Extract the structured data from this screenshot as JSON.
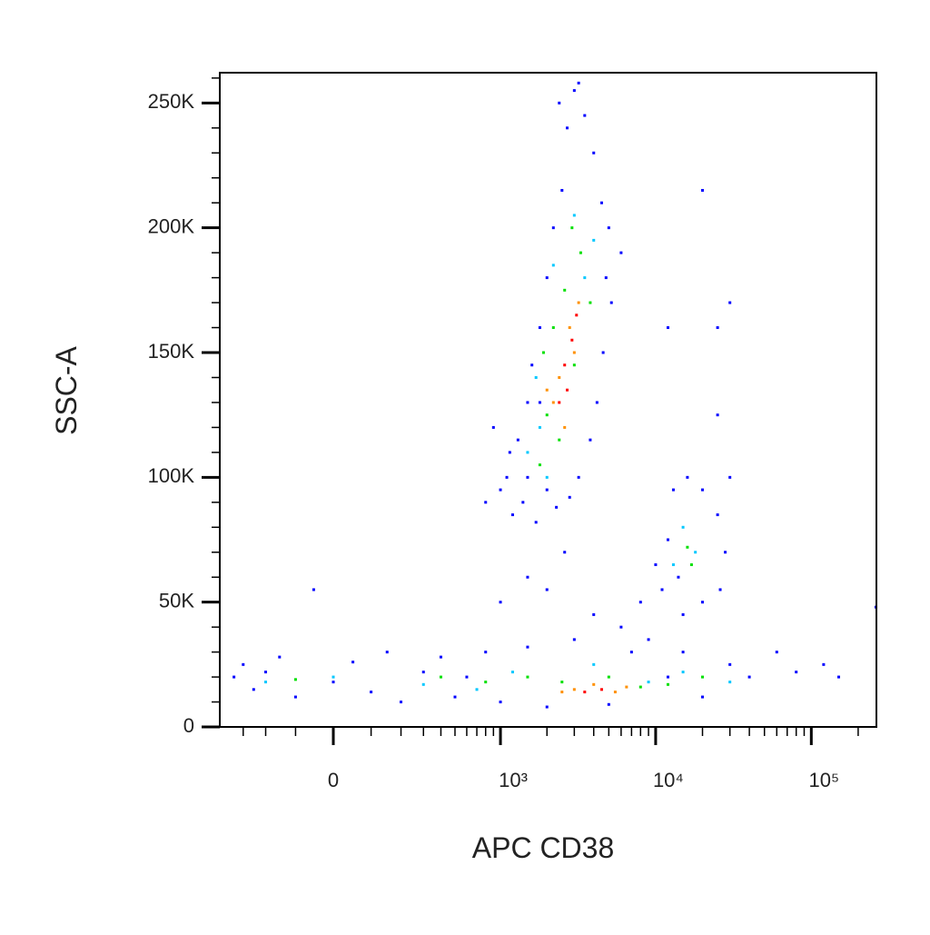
{
  "chart_data": {
    "type": "scatter",
    "x_label": "APC CD38",
    "y_label": "SSC-A",
    "xscale": "biexponential",
    "xlim": [
      -440,
      262000
    ],
    "ylim": [
      0,
      262144
    ],
    "xticks": [
      0,
      {
        "value": 1000,
        "label": "10³"
      },
      {
        "value": 10000,
        "label": "10⁴"
      },
      {
        "value": 100000,
        "label": "10⁵"
      }
    ],
    "xminorticks": [
      -300,
      -200,
      -100,
      100,
      200,
      300,
      400,
      500,
      600,
      700,
      800,
      900,
      2000,
      3000,
      4000,
      5000,
      6000,
      7000,
      8000,
      9000,
      20000,
      30000,
      40000,
      50000,
      60000,
      70000,
      80000,
      90000,
      200000
    ],
    "yticks": [
      0,
      {
        "value": 50000,
        "label": "50K"
      },
      {
        "value": 100000,
        "label": "100K"
      },
      {
        "value": 150000,
        "label": "150K"
      },
      {
        "value": 200000,
        "label": "200K"
      },
      {
        "value": 250000,
        "label": "250K"
      }
    ],
    "yminorticks": [
      10000,
      20000,
      30000,
      40000,
      60000,
      70000,
      80000,
      90000,
      110000,
      120000,
      130000,
      140000,
      160000,
      170000,
      180000,
      190000,
      210000,
      220000,
      230000,
      240000,
      260000
    ],
    "series": [
      {
        "color": "#0000ff",
        "x": [
          1100,
          1000,
          1200,
          1400,
          1300,
          1500,
          1600,
          1800,
          2000,
          2200,
          2500,
          2700,
          2400,
          3000,
          3500,
          4000,
          4500,
          5000,
          4800,
          5200,
          4600,
          4200,
          3800,
          3200,
          2800,
          2300,
          1700,
          1500,
          1150,
          2000,
          900,
          6000,
          3200,
          1800,
          2600,
          1500,
          800,
          11000,
          12000,
          13000,
          16000,
          20000,
          25000,
          28000,
          26000,
          20000,
          15000,
          10000,
          14000,
          30000,
          -350,
          -300,
          -250,
          -200,
          -150,
          -100,
          0,
          50,
          100,
          150,
          200,
          300,
          400,
          500,
          600,
          800,
          1000,
          1500,
          2000,
          3000,
          5000,
          7000,
          9000,
          12000,
          15000,
          20000,
          30000,
          40000,
          60000,
          80000,
          120000,
          150000,
          260000,
          4000,
          8000,
          2000,
          6000,
          1000,
          20000,
          25000,
          30000,
          25000,
          12000,
          -50
        ],
        "y": [
          100000,
          95000,
          85000,
          90000,
          115000,
          130000,
          145000,
          160000,
          180000,
          200000,
          215000,
          240000,
          250000,
          255000,
          245000,
          230000,
          210000,
          200000,
          180000,
          170000,
          150000,
          130000,
          115000,
          100000,
          92000,
          88000,
          82000,
          100000,
          110000,
          95000,
          120000,
          190000,
          258000,
          130000,
          70000,
          60000,
          90000,
          55000,
          75000,
          95000,
          100000,
          95000,
          85000,
          70000,
          55000,
          50000,
          45000,
          65000,
          60000,
          100000,
          20000,
          25000,
          15000,
          22000,
          28000,
          12000,
          18000,
          26000,
          14000,
          30000,
          10000,
          22000,
          28000,
          12000,
          20000,
          30000,
          10000,
          32000,
          8000,
          35000,
          9000,
          30000,
          35000,
          20000,
          30000,
          12000,
          25000,
          20000,
          30000,
          22000,
          25000,
          20000,
          48000,
          45000,
          50000,
          55000,
          40000,
          50000,
          215000,
          160000,
          170000,
          125000,
          160000,
          55000
        ]
      },
      {
        "color": "#00c8ff",
        "x": [
          1500,
          1800,
          2200,
          3000,
          4000,
          3500,
          2000,
          1700,
          15000,
          18000,
          13000,
          -200,
          0,
          300,
          700,
          1200,
          4000,
          9000,
          15000,
          30000
        ],
        "y": [
          110000,
          120000,
          185000,
          205000,
          195000,
          180000,
          100000,
          140000,
          80000,
          70000,
          65000,
          18000,
          20000,
          17000,
          15000,
          22000,
          25000,
          18000,
          22000,
          18000
        ]
      },
      {
        "color": "#00e000",
        "x": [
          1800,
          2000,
          2200,
          2600,
          3300,
          3800,
          3000,
          2400,
          1900,
          2900,
          16000,
          17000,
          -100,
          400,
          800,
          1500,
          2500,
          5000,
          8000,
          12000,
          20000
        ],
        "y": [
          105000,
          125000,
          160000,
          175000,
          190000,
          170000,
          145000,
          115000,
          150000,
          200000,
          72000,
          65000,
          19000,
          20000,
          18000,
          20000,
          18000,
          20000,
          16000,
          17000,
          20000
        ]
      },
      {
        "color": "#ff9000",
        "x": [
          2400,
          2800,
          3200,
          2200,
          2600,
          3000,
          2000,
          3000,
          4000,
          5500,
          2500,
          6500
        ],
        "y": [
          140000,
          160000,
          170000,
          130000,
          120000,
          150000,
          135000,
          15000,
          17000,
          14000,
          14000,
          16000
        ]
      },
      {
        "color": "#ff0000",
        "x": [
          2600,
          2900,
          2400,
          3100,
          2700,
          4500,
          3500
        ],
        "y": [
          145000,
          155000,
          130000,
          165000,
          135000,
          15000,
          14000
        ]
      }
    ]
  }
}
